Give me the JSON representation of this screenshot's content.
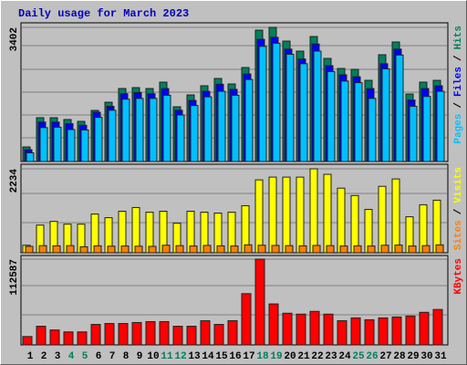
{
  "chart_data": {
    "type": "bar",
    "title": "Daily usage for March 2023",
    "categories": [
      "1",
      "2",
      "3",
      "4",
      "5",
      "6",
      "7",
      "8",
      "9",
      "10",
      "11",
      "12",
      "13",
      "14",
      "15",
      "16",
      "17",
      "18",
      "19",
      "20",
      "21",
      "22",
      "23",
      "24",
      "25",
      "26",
      "27",
      "28",
      "29",
      "30",
      "31"
    ],
    "category_colors": [
      "#000000",
      "#000000",
      "#000000",
      "#00805c",
      "#00805c",
      "#000000",
      "#000000",
      "#000000",
      "#000000",
      "#000000",
      "#00805c",
      "#00805c",
      "#000000",
      "#000000",
      "#000000",
      "#000000",
      "#000000",
      "#00805c",
      "#00805c",
      "#000000",
      "#000000",
      "#000000",
      "#000000",
      "#000000",
      "#00805c",
      "#00805c",
      "#000000",
      "#000000",
      "#000000",
      "#000000",
      "#000000"
    ],
    "legend_separator": "/",
    "panels": [
      {
        "ylim": [
          0,
          3402
        ],
        "yticks": [
          3402
        ],
        "grid": true,
        "series": [
          {
            "name": "Hits",
            "color": "#00805c",
            "values": [
              370,
              1111,
              1111,
              1065,
              1018,
              1296,
              1504,
              1851,
              1874,
              1851,
              2013,
              1388,
              1689,
              1921,
              2106,
              1967,
              2384,
              3332,
              3402,
              3054,
              2800,
              3170,
              2615,
              2360,
              2337,
              2059,
              2708,
              3031,
              1712,
              2013,
              2059
            ]
          },
          {
            "name": "Files",
            "color": "#0000ff",
            "values": [
              300,
              1000,
              1000,
              960,
              920,
              1250,
              1400,
              1720,
              1750,
              1720,
              1850,
              1300,
              1550,
              1780,
              1960,
              1830,
              2220,
              3100,
              3150,
              2850,
              2600,
              2980,
              2430,
              2200,
              2150,
              1850,
              2480,
              2850,
              1560,
              1850,
              1920
            ]
          },
          {
            "name": "Pages",
            "color": "#00c0ff",
            "values": [
              220,
              860,
              870,
              810,
              800,
              1120,
              1300,
              1580,
              1600,
              1600,
              1680,
              1180,
              1420,
              1640,
              1780,
              1680,
              2080,
              2920,
              3000,
              2720,
              2480,
              2800,
              2280,
              2040,
              2000,
              1600,
              2350,
              2700,
              1400,
              1650,
              1780
            ]
          }
        ]
      },
      {
        "ylim": [
          0,
          2234
        ],
        "yticks": [
          2234
        ],
        "grid": true,
        "series": [
          {
            "name": "Visits",
            "color": "#ffff00",
            "values": [
              200,
              736,
              835,
              761,
              761,
              1031,
              933,
              1105,
              1203,
              1080,
              1105,
              786,
              1105,
              1080,
              1056,
              1080,
              1252,
              1939,
              2013,
              2013,
              2013,
              2234,
              2087,
              1719,
              1522,
              1154,
              1768,
              1964,
              957,
              1277,
              1399
            ]
          },
          {
            "name": "Sites",
            "color": "#ff8000",
            "values": [
              170,
              190,
              185,
              190,
              160,
              185,
              175,
              180,
              175,
              170,
              200,
              190,
              180,
              195,
              185,
              180,
              210,
              200,
              195,
              190,
              185,
              195,
              190,
              180,
              185,
              180,
              200,
              205,
              180,
              190,
              210
            ]
          }
        ]
      },
      {
        "ylim": [
          0,
          112587
        ],
        "yticks": [
          112587
        ],
        "grid": true,
        "series": [
          {
            "name": "KBytes",
            "color": "#ff0000",
            "values": [
              11000,
              24500,
              19600,
              17100,
              17100,
              26900,
              28100,
              28100,
              29400,
              30600,
              30600,
              24500,
              24500,
              31800,
              26900,
              31800,
              67300,
              112587,
              53800,
              41600,
              40400,
              44000,
              40400,
              31800,
              35500,
              33000,
              35500,
              36700,
              37900,
              42800,
              46500
            ]
          }
        ]
      }
    ]
  }
}
